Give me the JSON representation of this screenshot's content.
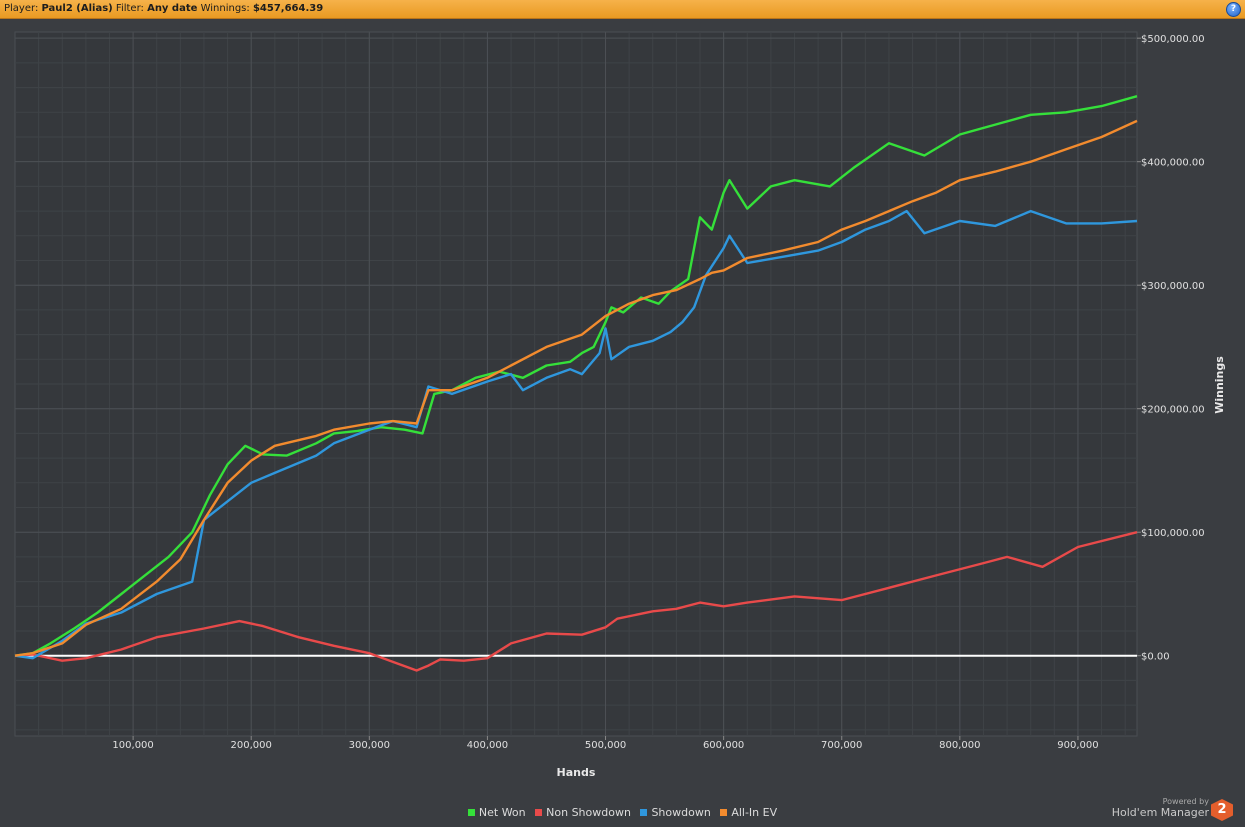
{
  "header": {
    "player_label": "Player:",
    "player_value": "Paul2 (Alias)",
    "filter_label": "Filter:",
    "filter_value": "Any date",
    "winnings_label": "Winnings:",
    "winnings_value": "$457,664.39",
    "help_glyph": "?"
  },
  "branding": {
    "powered_by": "Powered by",
    "name": "Hold'em Manager",
    "logo_text": "2"
  },
  "chart_data": {
    "type": "line",
    "xlabel": "Hands",
    "ylabel": "Winnings",
    "xlim": [
      0,
      950000
    ],
    "ylim": [
      -65000,
      505000
    ],
    "x_ticks": [
      100000,
      200000,
      300000,
      400000,
      500000,
      600000,
      700000,
      800000,
      900000
    ],
    "x_tick_labels": [
      "100,000",
      "200,000",
      "300,000",
      "400,000",
      "500,000",
      "600,000",
      "700,000",
      "800,000",
      "900,000"
    ],
    "y_ticks": [
      0,
      100000,
      200000,
      300000,
      400000,
      500000
    ],
    "y_tick_labels": [
      "$0.00",
      "$100,000.00",
      "$200,000.00",
      "$300,000.00",
      "$400,000.00",
      "$500,000.00"
    ],
    "y_axis_position": "right",
    "grid": true,
    "legend_position": "bottom-center",
    "series": [
      {
        "name": "Net Won",
        "color": "#35e03a",
        "x": [
          0,
          15000,
          30000,
          50000,
          70000,
          90000,
          110000,
          130000,
          150000,
          165000,
          180000,
          195000,
          210000,
          230000,
          255000,
          270000,
          290000,
          310000,
          330000,
          345000,
          355000,
          370000,
          390000,
          410000,
          430000,
          450000,
          470000,
          480000,
          490000,
          500000,
          505000,
          515000,
          530000,
          545000,
          555000,
          570000,
          580000,
          590000,
          600000,
          605000,
          620000,
          640000,
          660000,
          690000,
          710000,
          740000,
          770000,
          800000,
          830000,
          860000,
          890000,
          920000,
          950000
        ],
        "values": [
          0,
          2000,
          10000,
          22000,
          35000,
          50000,
          65000,
          80000,
          100000,
          130000,
          155000,
          170000,
          163000,
          162000,
          172000,
          180000,
          182000,
          185000,
          183000,
          180000,
          212000,
          215000,
          225000,
          230000,
          225000,
          235000,
          238000,
          245000,
          250000,
          270000,
          282000,
          278000,
          290000,
          285000,
          295000,
          305000,
          355000,
          345000,
          375000,
          385000,
          362000,
          380000,
          385000,
          380000,
          395000,
          415000,
          405000,
          422000,
          430000,
          438000,
          440000,
          445000,
          453000
        ]
      },
      {
        "name": "Non Showdown",
        "color": "#e84a4a",
        "x": [
          0,
          15000,
          40000,
          60000,
          90000,
          120000,
          160000,
          190000,
          210000,
          240000,
          270000,
          300000,
          320000,
          340000,
          350000,
          360000,
          380000,
          400000,
          420000,
          450000,
          480000,
          500000,
          510000,
          540000,
          560000,
          580000,
          600000,
          620000,
          660000,
          700000,
          740000,
          780000,
          820000,
          840000,
          870000,
          900000,
          950000
        ],
        "values": [
          0,
          1000,
          -4000,
          -2000,
          5000,
          15000,
          22000,
          28000,
          24000,
          15000,
          8000,
          2000,
          -5000,
          -12000,
          -8000,
          -3000,
          -4000,
          -2000,
          10000,
          18000,
          17000,
          23000,
          30000,
          36000,
          38000,
          43000,
          40000,
          43000,
          48000,
          45000,
          55000,
          65000,
          75000,
          80000,
          72000,
          88000,
          100000
        ]
      },
      {
        "name": "Showdown",
        "color": "#2f97dd",
        "x": [
          0,
          15000,
          40000,
          60000,
          90000,
          120000,
          150000,
          160000,
          180000,
          200000,
          220000,
          255000,
          270000,
          300000,
          320000,
          340000,
          350000,
          370000,
          400000,
          420000,
          430000,
          450000,
          470000,
          480000,
          495000,
          500000,
          505000,
          520000,
          540000,
          555000,
          565000,
          575000,
          585000,
          600000,
          605000,
          620000,
          650000,
          680000,
          700000,
          720000,
          740000,
          755000,
          770000,
          800000,
          830000,
          860000,
          890000,
          920000,
          950000
        ],
        "values": [
          0,
          -2000,
          12000,
          26000,
          35000,
          50000,
          60000,
          110000,
          125000,
          140000,
          148000,
          162000,
          172000,
          183000,
          190000,
          185000,
          218000,
          212000,
          222000,
          228000,
          215000,
          225000,
          232000,
          228000,
          245000,
          265000,
          240000,
          250000,
          255000,
          262000,
          270000,
          282000,
          308000,
          330000,
          340000,
          318000,
          323000,
          328000,
          335000,
          345000,
          352000,
          360000,
          342000,
          352000,
          348000,
          360000,
          350000,
          350000,
          352000
        ]
      },
      {
        "name": "All-In EV",
        "color": "#f28b2e",
        "x": [
          0,
          15000,
          40000,
          60000,
          90000,
          120000,
          140000,
          160000,
          180000,
          200000,
          220000,
          255000,
          270000,
          300000,
          320000,
          340000,
          350000,
          370000,
          400000,
          420000,
          450000,
          480000,
          500000,
          520000,
          540000,
          560000,
          580000,
          590000,
          600000,
          620000,
          650000,
          680000,
          700000,
          720000,
          740000,
          760000,
          780000,
          800000,
          830000,
          860000,
          890000,
          920000,
          950000
        ],
        "values": [
          0,
          2000,
          10000,
          25000,
          38000,
          60000,
          78000,
          110000,
          140000,
          158000,
          170000,
          178000,
          183000,
          188000,
          190000,
          188000,
          215000,
          215000,
          225000,
          235000,
          250000,
          260000,
          275000,
          285000,
          292000,
          296000,
          305000,
          310000,
          312000,
          322000,
          328000,
          335000,
          345000,
          352000,
          360000,
          368000,
          375000,
          385000,
          392000,
          400000,
          410000,
          420000,
          433000
        ]
      }
    ]
  }
}
